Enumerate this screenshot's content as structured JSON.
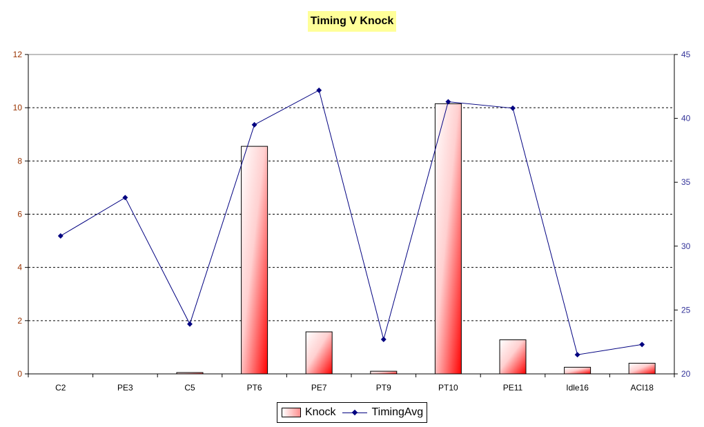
{
  "chart_data": {
    "type": "bar",
    "title": "Timing V Knock",
    "categories": [
      "C2",
      "PE3",
      "C5",
      "PT6",
      "PE7",
      "PT9",
      "PT10",
      "PE11",
      "Idle16",
      "ACI18"
    ],
    "series": [
      {
        "name": "Knock",
        "type": "bar",
        "axis": "left",
        "values": [
          0,
          0,
          0.05,
          8.55,
          1.58,
          0.1,
          10.15,
          1.28,
          0.25,
          0.4
        ]
      },
      {
        "name": "TimingAvg",
        "type": "line",
        "axis": "right",
        "values": [
          30.8,
          33.8,
          23.9,
          39.5,
          42.2,
          22.7,
          41.3,
          40.8,
          21.5,
          22.3
        ]
      }
    ],
    "y_left": {
      "ylim": [
        0,
        12
      ],
      "ticks": [
        "0",
        "2",
        "4",
        "6",
        "8",
        "10",
        "12"
      ]
    },
    "y_right": {
      "ylim": [
        20,
        45
      ],
      "ticks": [
        "20",
        "25",
        "30",
        "35",
        "40",
        "45"
      ]
    },
    "grid": "horizontal-dashed",
    "legend_position": "bottom",
    "colors": {
      "bar_fill_dark": "#ff0000",
      "bar_fill_light": "#ffffff",
      "line": "#000080",
      "left_axis_text": "#993300",
      "right_axis_text": "#333399"
    }
  }
}
